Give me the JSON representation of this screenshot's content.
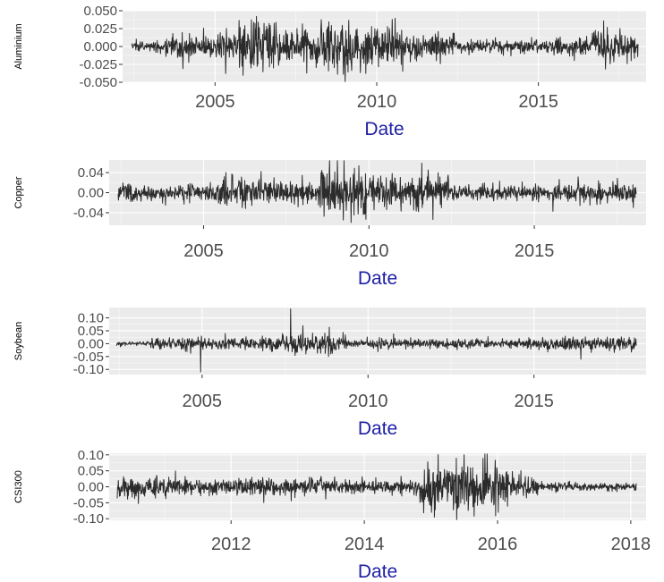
{
  "chart_data": [
    {
      "type": "line",
      "ylabel": "Aluminium",
      "xlabel": "Date",
      "x_range": [
        "2002-06-01",
        "2018-01-31"
      ],
      "ylim": [
        -0.05,
        0.05
      ],
      "yticks": [
        -0.05,
        -0.025,
        0.0,
        0.025,
        0.05
      ],
      "ytick_labels": [
        "-0.050",
        "-0.025",
        "0.000",
        "0.025",
        "0.050"
      ],
      "xtick_labels": [
        "2005",
        "2010",
        "2015"
      ],
      "grid": true,
      "bursts": [
        {
          "from": "2002-06-01",
          "to": "2003-06-01",
          "amplitude": 0.006
        },
        {
          "from": "2003-06-01",
          "to": "2005-09-01",
          "amplitude": 0.016
        },
        {
          "from": "2005-09-01",
          "to": "2006-12-01",
          "amplitude": 0.032
        },
        {
          "from": "2006-12-01",
          "to": "2008-03-01",
          "amplitude": 0.018
        },
        {
          "from": "2008-03-01",
          "to": "2010-12-01",
          "amplitude": 0.028
        },
        {
          "from": "2010-12-01",
          "to": "2012-06-01",
          "amplitude": 0.016
        },
        {
          "from": "2012-06-01",
          "to": "2015-06-01",
          "amplitude": 0.008
        },
        {
          "from": "2015-06-01",
          "to": "2016-09-01",
          "amplitude": 0.011
        },
        {
          "from": "2016-09-01",
          "to": "2018-01-31",
          "amplitude": 0.017
        }
      ]
    },
    {
      "type": "line",
      "ylabel": "Copper",
      "xlabel": "Date",
      "x_range": [
        "2002-06-01",
        "2018-01-31"
      ],
      "ylim": [
        -0.065,
        0.065
      ],
      "yticks": [
        -0.04,
        0.0,
        0.04
      ],
      "ytick_labels": [
        "-0.04",
        "0.00",
        "0.04"
      ],
      "xtick_labels": [
        "2005",
        "2010",
        "2015"
      ],
      "grid": true,
      "bursts": [
        {
          "from": "2002-06-01",
          "to": "2005-06-01",
          "amplitude": 0.016
        },
        {
          "from": "2005-06-01",
          "to": "2006-12-01",
          "amplitude": 0.028
        },
        {
          "from": "2006-12-01",
          "to": "2008-06-01",
          "amplitude": 0.02
        },
        {
          "from": "2008-06-01",
          "to": "2009-12-01",
          "amplitude": 0.045
        },
        {
          "from": "2009-12-01",
          "to": "2012-06-01",
          "amplitude": 0.028
        },
        {
          "from": "2012-06-01",
          "to": "2015-06-01",
          "amplitude": 0.013
        },
        {
          "from": "2015-06-01",
          "to": "2018-01-31",
          "amplitude": 0.017
        }
      ]
    },
    {
      "type": "line",
      "ylabel": "Soybean",
      "xlabel": "Date",
      "x_range": [
        "2002-06-01",
        "2018-01-31"
      ],
      "ylim": [
        -0.12,
        0.14
      ],
      "yticks": [
        -0.1,
        -0.05,
        0.0,
        0.05,
        0.1
      ],
      "ytick_labels": [
        "-0.10",
        "-0.05",
        "0.00",
        "0.05",
        "0.10"
      ],
      "xtick_labels": [
        "2005",
        "2010",
        "2015"
      ],
      "grid": true,
      "bursts": [
        {
          "from": "2002-06-01",
          "to": "2003-06-01",
          "amplitude": 0.007
        },
        {
          "from": "2003-06-01",
          "to": "2007-06-01",
          "amplitude": 0.02
        },
        {
          "from": "2007-06-01",
          "to": "2009-06-01",
          "amplitude": 0.035
        },
        {
          "from": "2009-06-01",
          "to": "2015-06-01",
          "amplitude": 0.015
        },
        {
          "from": "2015-06-01",
          "to": "2018-01-31",
          "amplitude": 0.024
        }
      ],
      "spikes": [
        {
          "date": "2004-12-15",
          "value": -0.11
        },
        {
          "date": "2007-09-01",
          "value": 0.135
        },
        {
          "date": "2008-01-15",
          "value": 0.07
        },
        {
          "date": "2016-06-01",
          "value": -0.06
        }
      ]
    },
    {
      "type": "line",
      "ylabel": "CSI300",
      "xlabel": "Date",
      "x_range": [
        "2010-04-16",
        "2018-01-31"
      ],
      "ylim": [
        -0.105,
        0.105
      ],
      "yticks": [
        -0.1,
        -0.05,
        0.0,
        0.05,
        0.1
      ],
      "ytick_labels": [
        "-0.10",
        "-0.05",
        "0.00",
        "0.05",
        "0.10"
      ],
      "xtick_labels": [
        "2012",
        "2014",
        "2016",
        "2018"
      ],
      "grid": true,
      "bursts": [
        {
          "from": "2010-04-16",
          "to": "2011-06-01",
          "amplitude": 0.028
        },
        {
          "from": "2011-06-01",
          "to": "2013-06-01",
          "amplitude": 0.022
        },
        {
          "from": "2013-06-01",
          "to": "2014-11-01",
          "amplitude": 0.018
        },
        {
          "from": "2014-11-01",
          "to": "2016-03-01",
          "amplitude": 0.065
        },
        {
          "from": "2016-03-01",
          "to": "2016-09-01",
          "amplitude": 0.025
        },
        {
          "from": "2016-09-01",
          "to": "2018-01-31",
          "amplitude": 0.01
        }
      ],
      "spikes": [
        {
          "date": "2015-01-20",
          "value": -0.095
        },
        {
          "date": "2015-07-01",
          "value": 0.1
        },
        {
          "date": "2015-08-25",
          "value": -0.092
        },
        {
          "date": "2016-01-05",
          "value": -0.08
        }
      ]
    }
  ]
}
